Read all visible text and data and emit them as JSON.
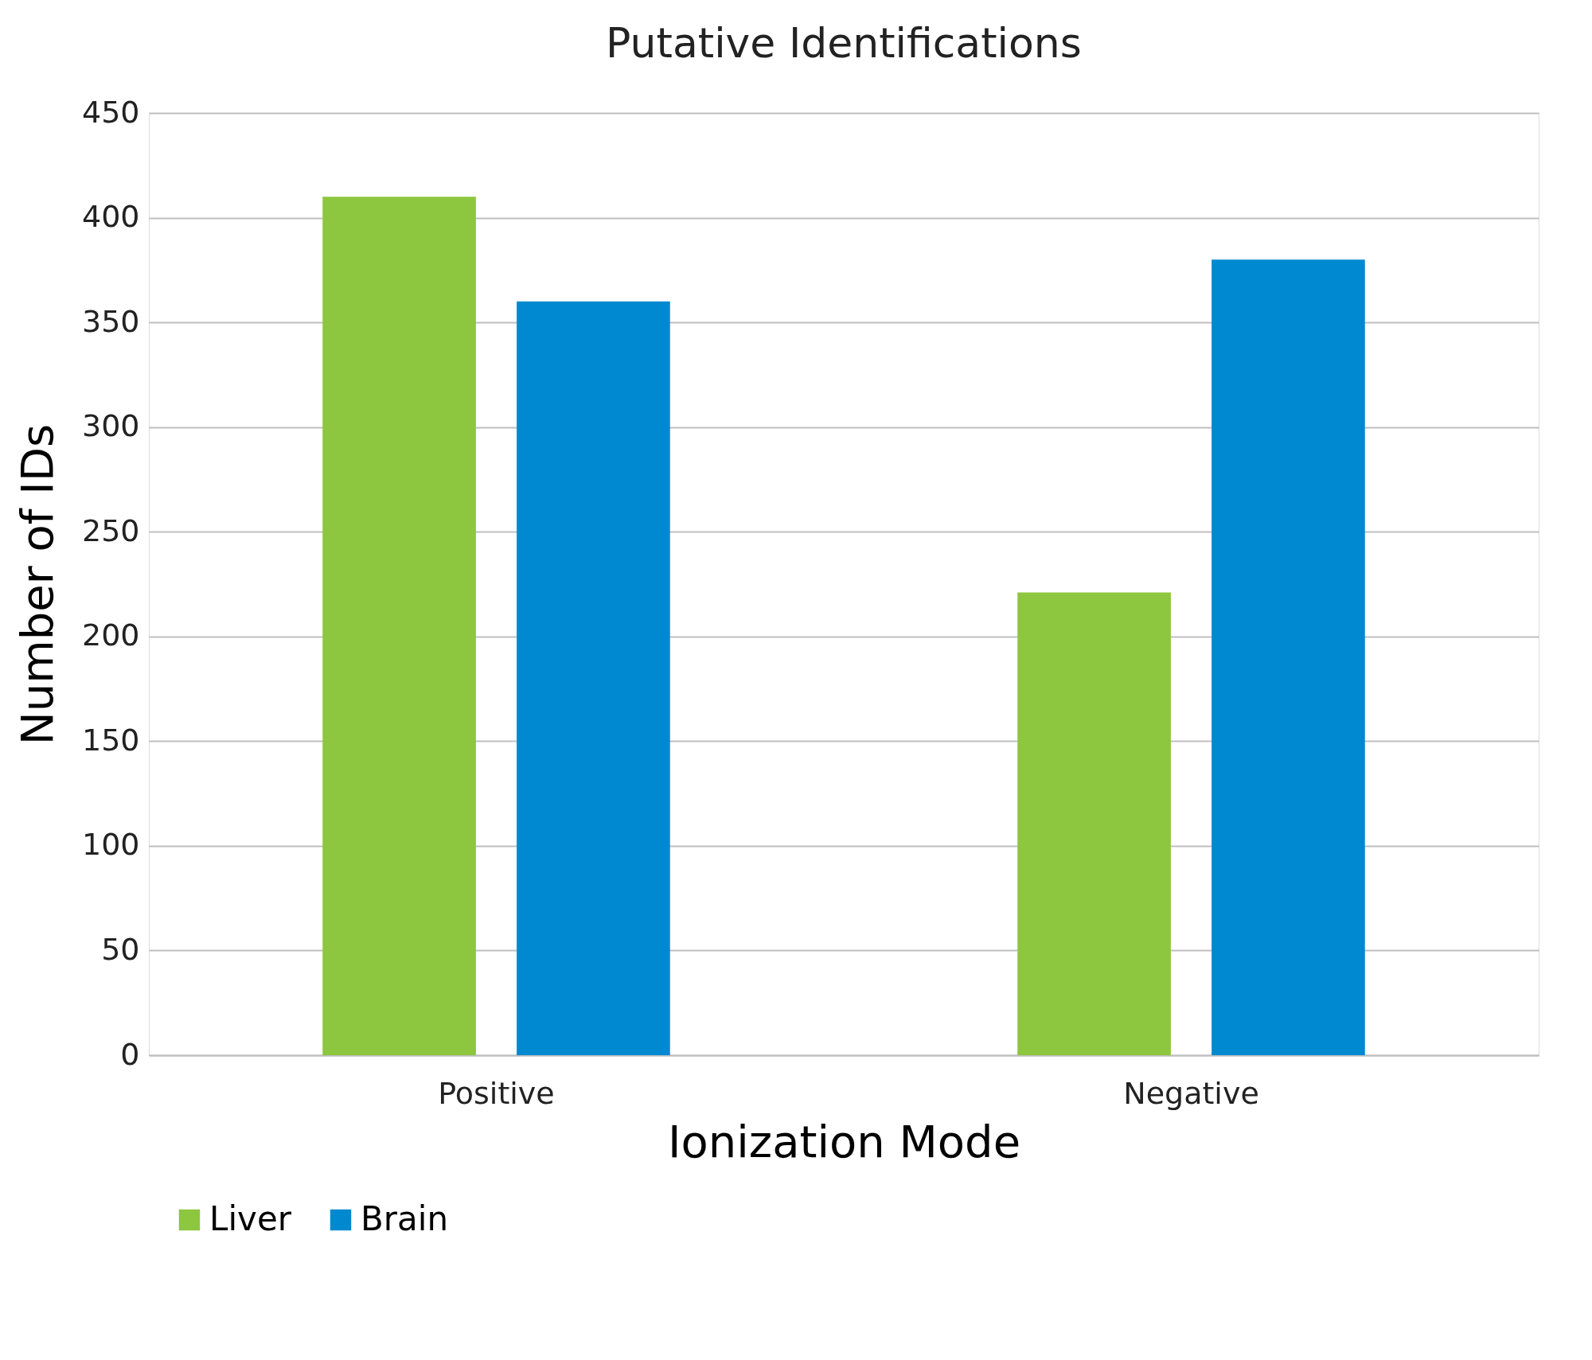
{
  "chart_data": {
    "type": "bar",
    "title": "Putative Identifications",
    "xlabel": "Ionization Mode",
    "ylabel": "Number of IDs",
    "categories": [
      "Positive",
      "Negative"
    ],
    "series": [
      {
        "name": "Liver",
        "color": "#8dc63f",
        "values": [
          410,
          221
        ]
      },
      {
        "name": "Brain",
        "color": "#0089d0",
        "values": [
          360,
          380
        ]
      }
    ],
    "ylim": [
      0,
      450
    ],
    "yticks": [
      0,
      50,
      100,
      150,
      200,
      250,
      300,
      350,
      400,
      450
    ],
    "grid": "y",
    "legend": "bottom"
  }
}
